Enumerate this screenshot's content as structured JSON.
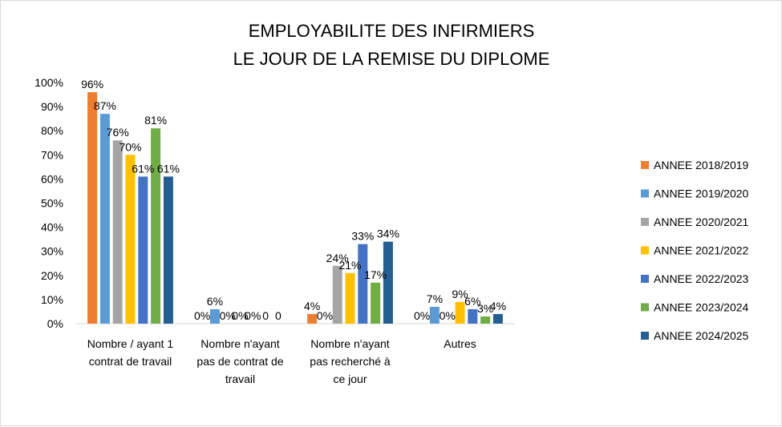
{
  "chart_data": {
    "type": "bar",
    "title": [
      "EMPLOYABILITE DES INFIRMIERS",
      "LE JOUR DE LA REMISE DU DIPLOME"
    ],
    "categories": [
      [
        "Nombre / ayant 1",
        "contrat de travail"
      ],
      [
        "Nombre n'ayant",
        "pas de contrat de",
        "travail"
      ],
      [
        "Nombre n'ayant",
        "pas recherché à",
        "ce jour"
      ],
      [
        "Autres"
      ]
    ],
    "ylim": [
      0,
      100
    ],
    "yticks": [
      0,
      10,
      20,
      30,
      40,
      50,
      60,
      70,
      80,
      90,
      100
    ],
    "ytick_labels": [
      "0%",
      "10%",
      "20%",
      "30%",
      "40%",
      "50%",
      "60%",
      "70%",
      "80%",
      "90%",
      "100%"
    ],
    "grid": false,
    "legend_position": "right",
    "series": [
      {
        "name": "ANNEE 2018/2019",
        "color": "#ED7D31",
        "values": [
          96,
          0,
          4,
          0
        ],
        "labels": [
          "96%",
          "0%",
          "4%",
          "0%"
        ]
      },
      {
        "name": "ANNEE 2019/2020",
        "color": "#5B9BD5",
        "values": [
          87,
          6,
          0,
          7
        ],
        "labels": [
          "87%",
          "6%",
          "0%",
          "7%"
        ]
      },
      {
        "name": "ANNEE 2020/2021",
        "color": "#A5A5A5",
        "values": [
          76,
          0,
          24,
          0
        ],
        "labels": [
          "76%",
          "0%",
          "24%",
          "0%"
        ]
      },
      {
        "name": "ANNEE 2021/2022",
        "color": "#FFC000",
        "values": [
          70,
          0,
          21,
          9
        ],
        "labels": [
          "70%",
          "0%",
          "21%",
          "9%"
        ]
      },
      {
        "name": "ANNEE 2022/2023",
        "color": "#4472C4",
        "values": [
          61,
          0,
          33,
          6
        ],
        "labels": [
          "61%",
          "0%",
          "33%",
          "6%"
        ]
      },
      {
        "name": "ANNEE 2023/2024",
        "color": "#70AD47",
        "values": [
          81,
          0,
          17,
          3
        ],
        "labels": [
          "81%",
          "0",
          "17%",
          "3%"
        ]
      },
      {
        "name": "ANNEE 2024/2025",
        "color": "#255E91",
        "values": [
          61,
          0,
          34,
          4
        ],
        "labels": [
          "61%",
          "0",
          "34%",
          "4%"
        ]
      }
    ]
  }
}
